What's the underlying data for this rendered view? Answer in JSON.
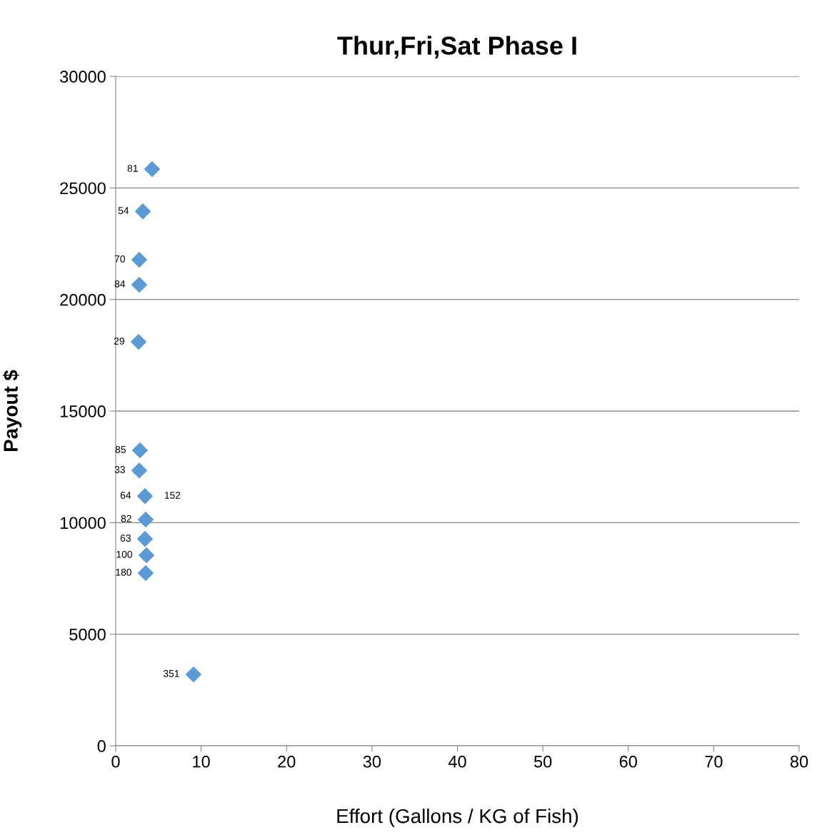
{
  "chart_data": {
    "type": "scatter",
    "title": "Thur,Fri,Sat Phase I",
    "xlabel": "Effort (Gallons / KG of Fish)",
    "ylabel": "Payout $",
    "x": [
      4.26,
      3.18,
      2.76,
      2.76,
      2.68,
      2.84,
      2.76,
      3.43,
      3.51,
      3.43,
      3.6,
      3.51,
      9.11
    ],
    "series": [
      {
        "color": "#5b9bd5",
        "values": [
          25840,
          23950,
          21780,
          20660,
          18100,
          13240,
          12340,
          11190,
          10140,
          9270,
          8540,
          7740,
          3200
        ]
      }
    ],
    "annotations": [
      {
        "text": "81",
        "x": 4.26,
        "y": 25840
      },
      {
        "text": "54",
        "x": 3.18,
        "y": 23950
      },
      {
        "text": "70",
        "x": 2.76,
        "y": 21780
      },
      {
        "text": "84",
        "x": 2.76,
        "y": 20660
      },
      {
        "text": "29",
        "x": 2.68,
        "y": 18100
      },
      {
        "text": "85",
        "x": 2.84,
        "y": 13240
      },
      {
        "text": "33",
        "x": 2.76,
        "y": 12340
      },
      {
        "text": "64",
        "x": 3.43,
        "y": 11190
      },
      {
        "text": "82",
        "x": 3.51,
        "y": 10140
      },
      {
        "text": "63",
        "x": 3.43,
        "y": 9270
      },
      {
        "text": "100",
        "x": 3.6,
        "y": 8540
      },
      {
        "text": "180",
        "x": 3.51,
        "y": 7740
      },
      {
        "text": "351",
        "x": 9.11,
        "y": 3200
      },
      "152"
    ],
    "marker": "diamond",
    "grid": "y",
    "legend": false,
    "xlim": [
      0,
      80
    ],
    "xticks": [
      0,
      10,
      20,
      30,
      40,
      50,
      60,
      70,
      80
    ],
    "ylim": [
      0,
      30000
    ],
    "yticks": [
      0,
      5000,
      10000,
      15000,
      20000,
      25000,
      30000
    ]
  }
}
